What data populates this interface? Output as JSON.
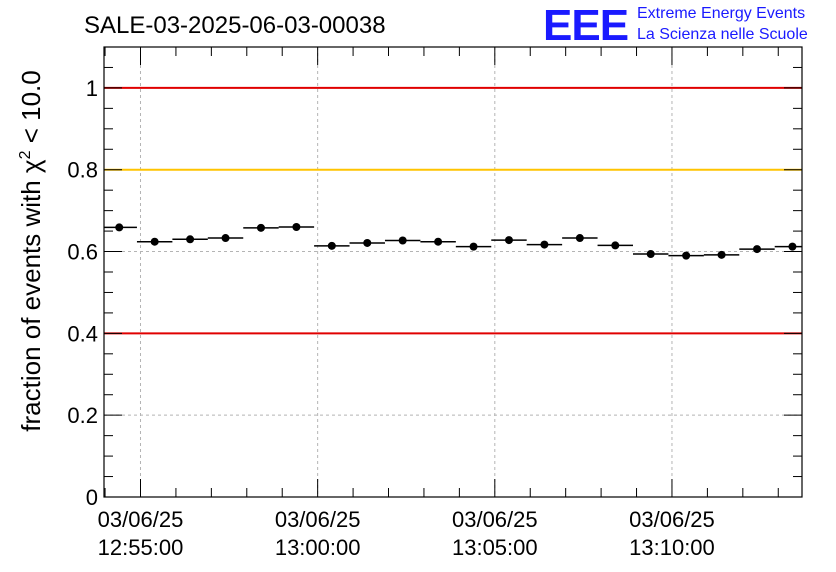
{
  "header": {
    "title": "SALE-03-2025-06-03-00038"
  },
  "logo": {
    "mark": "EEE",
    "line1": "Extreme Energy Events",
    "line2": "La Scienza nelle Scuole",
    "color": "#1a1aff"
  },
  "chart_data": {
    "type": "scatter",
    "title": "SALE-03-2025-06-03-00038",
    "xlabel": "",
    "ylabel": "fraction of events with χ² < 10.0",
    "ylabel_parts": {
      "prefix": "fraction of events with ",
      "symbol": "χ",
      "superscript": "2",
      "suffix": " < 10.0"
    },
    "x_unit": "minutes since 12:55:00",
    "xlim": [
      -1.03,
      18.67
    ],
    "ylim": [
      0,
      1.1
    ],
    "grid": true,
    "x_ticks": [
      {
        "value": 0,
        "date": "03/06/25",
        "time": "12:55:00"
      },
      {
        "value": 5,
        "date": "03/06/25",
        "time": "13:00:00"
      },
      {
        "value": 10,
        "date": "03/06/25",
        "time": "13:05:00"
      },
      {
        "value": 15,
        "date": "03/06/25",
        "time": "13:10:00"
      }
    ],
    "y_ticks": [
      {
        "value": 0,
        "label": "0"
      },
      {
        "value": 0.2,
        "label": "0.2"
      },
      {
        "value": 0.4,
        "label": "0.4"
      },
      {
        "value": 0.6,
        "label": "0.6"
      },
      {
        "value": 0.8,
        "label": "0.8"
      },
      {
        "value": 1.0,
        "label": "1"
      }
    ],
    "reference_lines": [
      {
        "y": 1.0,
        "color": "#e00000"
      },
      {
        "y": 0.8,
        "color": "#ffc400"
      },
      {
        "y": 0.4,
        "color": "#e00000"
      }
    ],
    "bin_width": 1.0,
    "x": [
      -0.6,
      0.4,
      1.4,
      2.4,
      3.4,
      4.4,
      5.4,
      6.4,
      7.4,
      8.4,
      9.4,
      10.4,
      11.4,
      12.4,
      13.4,
      14.4,
      15.4,
      16.4,
      17.4,
      18.4
    ],
    "values": [
      0.659,
      0.624,
      0.63,
      0.633,
      0.658,
      0.66,
      0.614,
      0.621,
      0.627,
      0.624,
      0.612,
      0.628,
      0.617,
      0.633,
      0.615,
      0.594,
      0.59,
      0.592,
      0.606,
      0.612
    ],
    "marker_color": "#000000"
  }
}
